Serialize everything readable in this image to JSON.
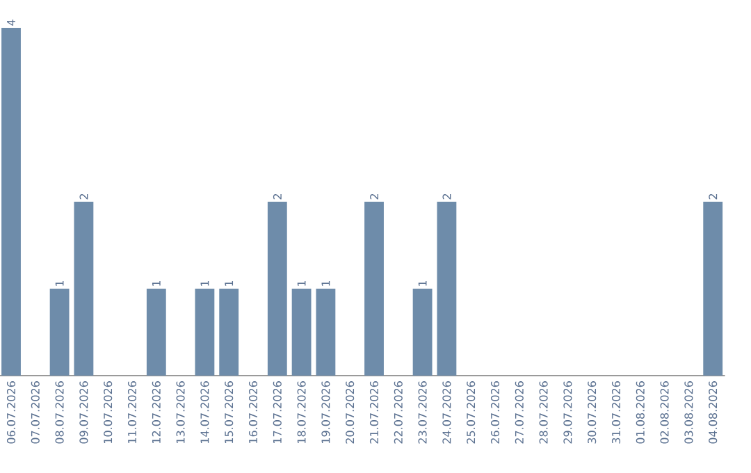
{
  "chart_data": {
    "type": "bar",
    "categories": [
      "06.07.2026",
      "07.07.2026",
      "08.07.2026",
      "09.07.2026",
      "10.07.2026",
      "11.07.2026",
      "12.07.2026",
      "13.07.2026",
      "14.07.2026",
      "15.07.2026",
      "16.07.2026",
      "17.07.2026",
      "18.07.2026",
      "19.07.2026",
      "20.07.2026",
      "21.07.2026",
      "22.07.2026",
      "23.07.2026",
      "24.07.2026",
      "25.07.2026",
      "26.07.2026",
      "27.07.2026",
      "28.07.2026",
      "29.07.2026",
      "30.07.2026",
      "31.07.2026",
      "01.08.2026",
      "02.08.2026",
      "03.08.2026",
      "04.08.2026"
    ],
    "values": [
      4,
      0,
      1,
      2,
      0,
      0,
      1,
      0,
      1,
      1,
      0,
      2,
      1,
      1,
      0,
      2,
      0,
      1,
      2,
      0,
      0,
      0,
      0,
      0,
      0,
      0,
      0,
      0,
      0,
      2
    ],
    "value_labels": [
      "4",
      null,
      "1",
      "2",
      null,
      null,
      "1",
      null,
      "1",
      "1",
      null,
      "2",
      "1",
      "1",
      null,
      "2",
      null,
      "1",
      "2",
      null,
      null,
      null,
      null,
      null,
      null,
      null,
      null,
      null,
      null,
      "2"
    ],
    "color": "#6e8caa"
  }
}
